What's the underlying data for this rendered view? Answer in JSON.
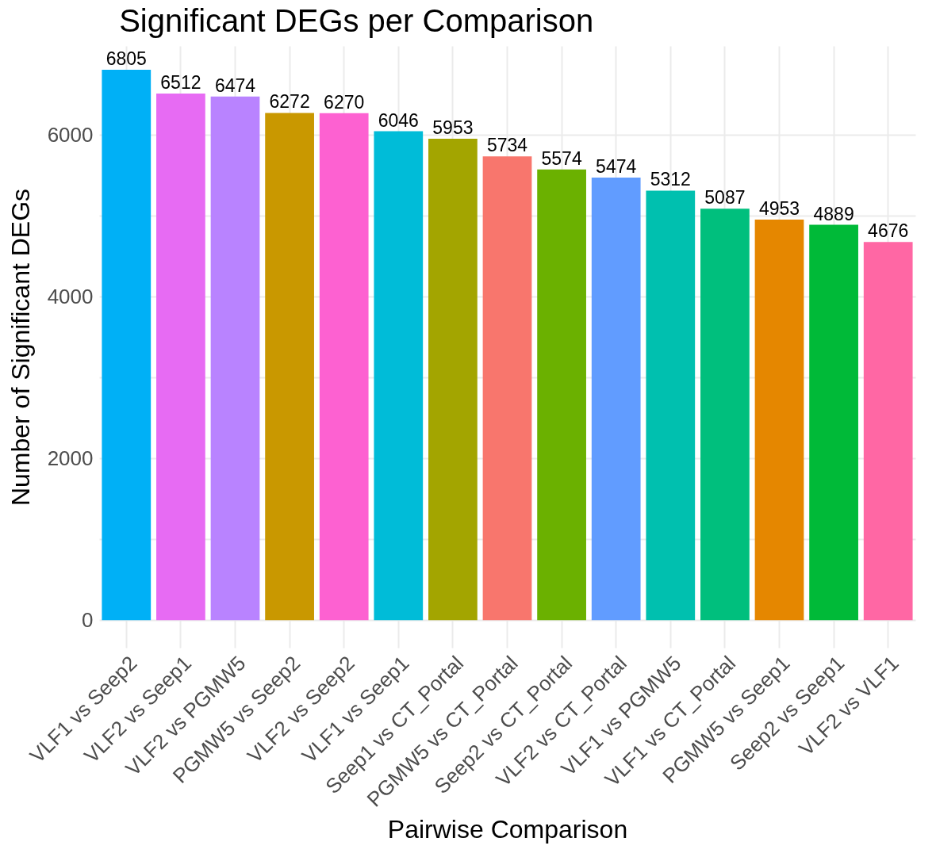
{
  "chart_data": {
    "type": "bar",
    "title": "Significant DEGs per Comparison",
    "xlabel": "Pairwise Comparison",
    "ylabel": "Number of Significant DEGs",
    "categories": [
      "VLF1 vs Seep2",
      "VLF2 vs Seep1",
      "VLF2 vs PGMW5",
      "PGMW5 vs Seep2",
      "VLF2 vs Seep2",
      "VLF1 vs Seep1",
      "Seep1 vs CT_Portal",
      "PGMW5 vs CT_Portal",
      "Seep2 vs CT_Portal",
      "VLF2 vs CT_Portal",
      "VLF1 vs PGMW5",
      "VLF1 vs CT_Portal",
      "PGMW5 vs Seep1",
      "Seep2 vs Seep1",
      "VLF2 vs VLF1"
    ],
    "values": [
      6805,
      6512,
      6474,
      6272,
      6270,
      6046,
      5953,
      5734,
      5574,
      5474,
      5312,
      5087,
      4953,
      4889,
      4676
    ],
    "colors": [
      "#00b0f6",
      "#e76bf3",
      "#b983ff",
      "#c99800",
      "#fd61d1",
      "#00bcd8",
      "#a3a500",
      "#f8766d",
      "#6bb100",
      "#619cff",
      "#00c0af",
      "#00bf7d",
      "#e58700",
      "#00ba38",
      "#ff67a4"
    ],
    "ylim": [
      -340,
      7100
    ],
    "yticks": [
      0,
      {
        "value": 1000,
        "label": null
      },
      2000,
      {
        "value": 3000,
        "label": null
      },
      4000,
      {
        "value": 5000,
        "label": null
      },
      6000
    ],
    "grid": true,
    "data_labels": true
  }
}
